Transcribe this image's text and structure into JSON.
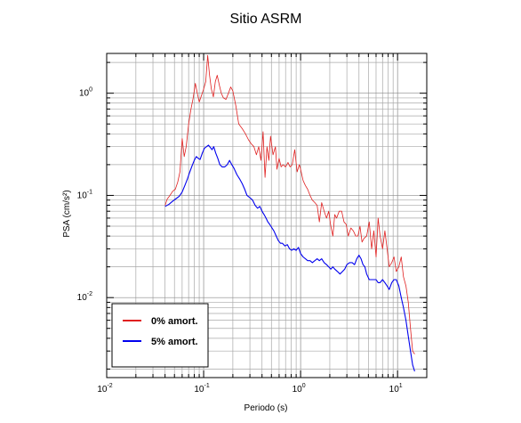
{
  "chart_data": {
    "type": "line",
    "title": "Sitio ASRM",
    "xlabel": "Periodo (s)",
    "ylabel": "PSA (cm/s²)",
    "xscale": "log",
    "yscale": "log",
    "xlim": [
      0.01,
      20
    ],
    "ylim": [
      0.00165,
      2.45
    ],
    "grid": true,
    "legend_position": "bottom-left",
    "x_ticks": [
      {
        "base": "10",
        "exp": "-2",
        "value": 0.01
      },
      {
        "base": "10",
        "exp": "-1",
        "value": 0.1
      },
      {
        "base": "10",
        "exp": "0",
        "value": 1
      },
      {
        "base": "10",
        "exp": "1",
        "value": 10
      }
    ],
    "y_ticks": [
      {
        "base": "10",
        "exp": "-2",
        "value": 0.01
      },
      {
        "base": "10",
        "exp": "-1",
        "value": 0.1
      },
      {
        "base": "10",
        "exp": "0",
        "value": 1
      }
    ],
    "series": [
      {
        "name": "0% amort.",
        "color": "#e02020",
        "points": [
          [
            0.04,
            0.08
          ],
          [
            0.042,
            0.092
          ],
          [
            0.045,
            0.1
          ],
          [
            0.048,
            0.11
          ],
          [
            0.051,
            0.115
          ],
          [
            0.054,
            0.135
          ],
          [
            0.057,
            0.17
          ],
          [
            0.06,
            0.36
          ],
          [
            0.063,
            0.24
          ],
          [
            0.066,
            0.3
          ],
          [
            0.07,
            0.5
          ],
          [
            0.074,
            0.7
          ],
          [
            0.078,
            0.9
          ],
          [
            0.082,
            1.25
          ],
          [
            0.086,
            1.0
          ],
          [
            0.09,
            0.82
          ],
          [
            0.095,
            0.95
          ],
          [
            0.1,
            1.1
          ],
          [
            0.105,
            1.3
          ],
          [
            0.11,
            2.35
          ],
          [
            0.115,
            1.5
          ],
          [
            0.12,
            1.1
          ],
          [
            0.126,
            0.92
          ],
          [
            0.132,
            1.3
          ],
          [
            0.138,
            1.5
          ],
          [
            0.145,
            1.2
          ],
          [
            0.152,
            1.0
          ],
          [
            0.16,
            0.9
          ],
          [
            0.17,
            0.87
          ],
          [
            0.18,
            1.0
          ],
          [
            0.19,
            1.15
          ],
          [
            0.2,
            1.05
          ],
          [
            0.215,
            0.75
          ],
          [
            0.23,
            0.5
          ],
          [
            0.25,
            0.45
          ],
          [
            0.27,
            0.4
          ],
          [
            0.29,
            0.35
          ],
          [
            0.31,
            0.32
          ],
          [
            0.33,
            0.3
          ],
          [
            0.35,
            0.25
          ],
          [
            0.37,
            0.3
          ],
          [
            0.39,
            0.22
          ],
          [
            0.41,
            0.42
          ],
          [
            0.43,
            0.15
          ],
          [
            0.45,
            0.3
          ],
          [
            0.47,
            0.22
          ],
          [
            0.49,
            0.38
          ],
          [
            0.52,
            0.25
          ],
          [
            0.55,
            0.3
          ],
          [
            0.57,
            0.18
          ],
          [
            0.6,
            0.23
          ],
          [
            0.63,
            0.19
          ],
          [
            0.66,
            0.2
          ],
          [
            0.7,
            0.19
          ],
          [
            0.74,
            0.21
          ],
          [
            0.78,
            0.19
          ],
          [
            0.82,
            0.2
          ],
          [
            0.87,
            0.28
          ],
          [
            0.92,
            0.17
          ],
          [
            0.97,
            0.2
          ],
          [
            1.0,
            0.18
          ],
          [
            1.06,
            0.14
          ],
          [
            1.12,
            0.125
          ],
          [
            1.18,
            0.115
          ],
          [
            1.25,
            0.1
          ],
          [
            1.32,
            0.09
          ],
          [
            1.4,
            0.085
          ],
          [
            1.48,
            0.08
          ],
          [
            1.56,
            0.055
          ],
          [
            1.65,
            0.085
          ],
          [
            1.75,
            0.07
          ],
          [
            1.85,
            0.06
          ],
          [
            1.95,
            0.07
          ],
          [
            2.05,
            0.05
          ],
          [
            2.15,
            0.04
          ],
          [
            2.25,
            0.065
          ],
          [
            2.35,
            0.06
          ],
          [
            2.5,
            0.07
          ],
          [
            2.65,
            0.07
          ],
          [
            2.8,
            0.055
          ],
          [
            2.95,
            0.052
          ],
          [
            3.1,
            0.04
          ],
          [
            3.3,
            0.048
          ],
          [
            3.5,
            0.045
          ],
          [
            3.7,
            0.04
          ],
          [
            3.9,
            0.04
          ],
          [
            4.1,
            0.05
          ],
          [
            4.3,
            0.035
          ],
          [
            4.5,
            0.038
          ],
          [
            4.8,
            0.04
          ],
          [
            5.1,
            0.055
          ],
          [
            5.4,
            0.03
          ],
          [
            5.7,
            0.045
          ],
          [
            6.0,
            0.025
          ],
          [
            6.3,
            0.06
          ],
          [
            6.6,
            0.04
          ],
          [
            7.0,
            0.03
          ],
          [
            7.4,
            0.045
          ],
          [
            7.8,
            0.03
          ],
          [
            8.2,
            0.02
          ],
          [
            8.7,
            0.022
          ],
          [
            9.2,
            0.025
          ],
          [
            9.7,
            0.018
          ],
          [
            10.3,
            0.02
          ],
          [
            10.9,
            0.025
          ],
          [
            11.5,
            0.016
          ],
          [
            12.2,
            0.013
          ],
          [
            12.9,
            0.009
          ],
          [
            13.6,
            0.005
          ],
          [
            14.3,
            0.003
          ],
          [
            15.0,
            0.0028
          ]
        ]
      },
      {
        "name": "5% amort.",
        "color": "#0000ee",
        "points": [
          [
            0.04,
            0.078
          ],
          [
            0.044,
            0.082
          ],
          [
            0.048,
            0.088
          ],
          [
            0.052,
            0.093
          ],
          [
            0.056,
            0.098
          ],
          [
            0.06,
            0.108
          ],
          [
            0.064,
            0.125
          ],
          [
            0.068,
            0.145
          ],
          [
            0.072,
            0.17
          ],
          [
            0.076,
            0.195
          ],
          [
            0.08,
            0.22
          ],
          [
            0.084,
            0.24
          ],
          [
            0.088,
            0.23
          ],
          [
            0.092,
            0.225
          ],
          [
            0.097,
            0.26
          ],
          [
            0.102,
            0.29
          ],
          [
            0.107,
            0.3
          ],
          [
            0.112,
            0.31
          ],
          [
            0.117,
            0.295
          ],
          [
            0.122,
            0.28
          ],
          [
            0.127,
            0.3
          ],
          [
            0.133,
            0.26
          ],
          [
            0.14,
            0.23
          ],
          [
            0.147,
            0.2
          ],
          [
            0.155,
            0.19
          ],
          [
            0.165,
            0.19
          ],
          [
            0.175,
            0.2
          ],
          [
            0.185,
            0.22
          ],
          [
            0.195,
            0.2
          ],
          [
            0.205,
            0.185
          ],
          [
            0.22,
            0.16
          ],
          [
            0.235,
            0.145
          ],
          [
            0.25,
            0.13
          ],
          [
            0.265,
            0.115
          ],
          [
            0.28,
            0.1
          ],
          [
            0.3,
            0.095
          ],
          [
            0.32,
            0.09
          ],
          [
            0.34,
            0.08
          ],
          [
            0.36,
            0.075
          ],
          [
            0.38,
            0.078
          ],
          [
            0.4,
            0.07
          ],
          [
            0.42,
            0.065
          ],
          [
            0.44,
            0.06
          ],
          [
            0.46,
            0.055
          ],
          [
            0.48,
            0.052
          ],
          [
            0.5,
            0.049
          ],
          [
            0.53,
            0.045
          ],
          [
            0.56,
            0.04
          ],
          [
            0.59,
            0.036
          ],
          [
            0.62,
            0.034
          ],
          [
            0.65,
            0.034
          ],
          [
            0.69,
            0.032
          ],
          [
            0.73,
            0.033
          ],
          [
            0.77,
            0.03
          ],
          [
            0.81,
            0.029
          ],
          [
            0.85,
            0.03
          ],
          [
            0.9,
            0.029
          ],
          [
            0.95,
            0.031
          ],
          [
            1.0,
            0.027
          ],
          [
            1.06,
            0.025
          ],
          [
            1.12,
            0.024
          ],
          [
            1.18,
            0.023
          ],
          [
            1.25,
            0.023
          ],
          [
            1.32,
            0.022
          ],
          [
            1.4,
            0.023
          ],
          [
            1.48,
            0.024
          ],
          [
            1.56,
            0.023
          ],
          [
            1.65,
            0.024
          ],
          [
            1.75,
            0.022
          ],
          [
            1.85,
            0.021
          ],
          [
            1.95,
            0.02
          ],
          [
            2.05,
            0.019
          ],
          [
            2.15,
            0.02
          ],
          [
            2.25,
            0.019
          ],
          [
            2.4,
            0.018
          ],
          [
            2.55,
            0.017
          ],
          [
            2.7,
            0.018
          ],
          [
            2.85,
            0.019
          ],
          [
            3.0,
            0.021
          ],
          [
            3.2,
            0.022
          ],
          [
            3.4,
            0.022
          ],
          [
            3.6,
            0.021
          ],
          [
            3.8,
            0.024
          ],
          [
            4.0,
            0.026
          ],
          [
            4.2,
            0.024
          ],
          [
            4.4,
            0.021
          ],
          [
            4.6,
            0.02
          ],
          [
            4.8,
            0.017
          ],
          [
            5.1,
            0.015
          ],
          [
            5.4,
            0.015
          ],
          [
            5.7,
            0.015
          ],
          [
            6.0,
            0.015
          ],
          [
            6.3,
            0.014
          ],
          [
            6.6,
            0.014
          ],
          [
            7.0,
            0.015
          ],
          [
            7.4,
            0.014
          ],
          [
            7.8,
            0.013
          ],
          [
            8.2,
            0.012
          ],
          [
            8.7,
            0.014
          ],
          [
            9.2,
            0.015
          ],
          [
            9.7,
            0.015
          ],
          [
            10.3,
            0.013
          ],
          [
            10.9,
            0.01
          ],
          [
            11.5,
            0.008
          ],
          [
            12.2,
            0.006
          ],
          [
            12.9,
            0.0042
          ],
          [
            13.6,
            0.003
          ],
          [
            14.3,
            0.0022
          ],
          [
            15.0,
            0.0019
          ]
        ]
      }
    ]
  }
}
